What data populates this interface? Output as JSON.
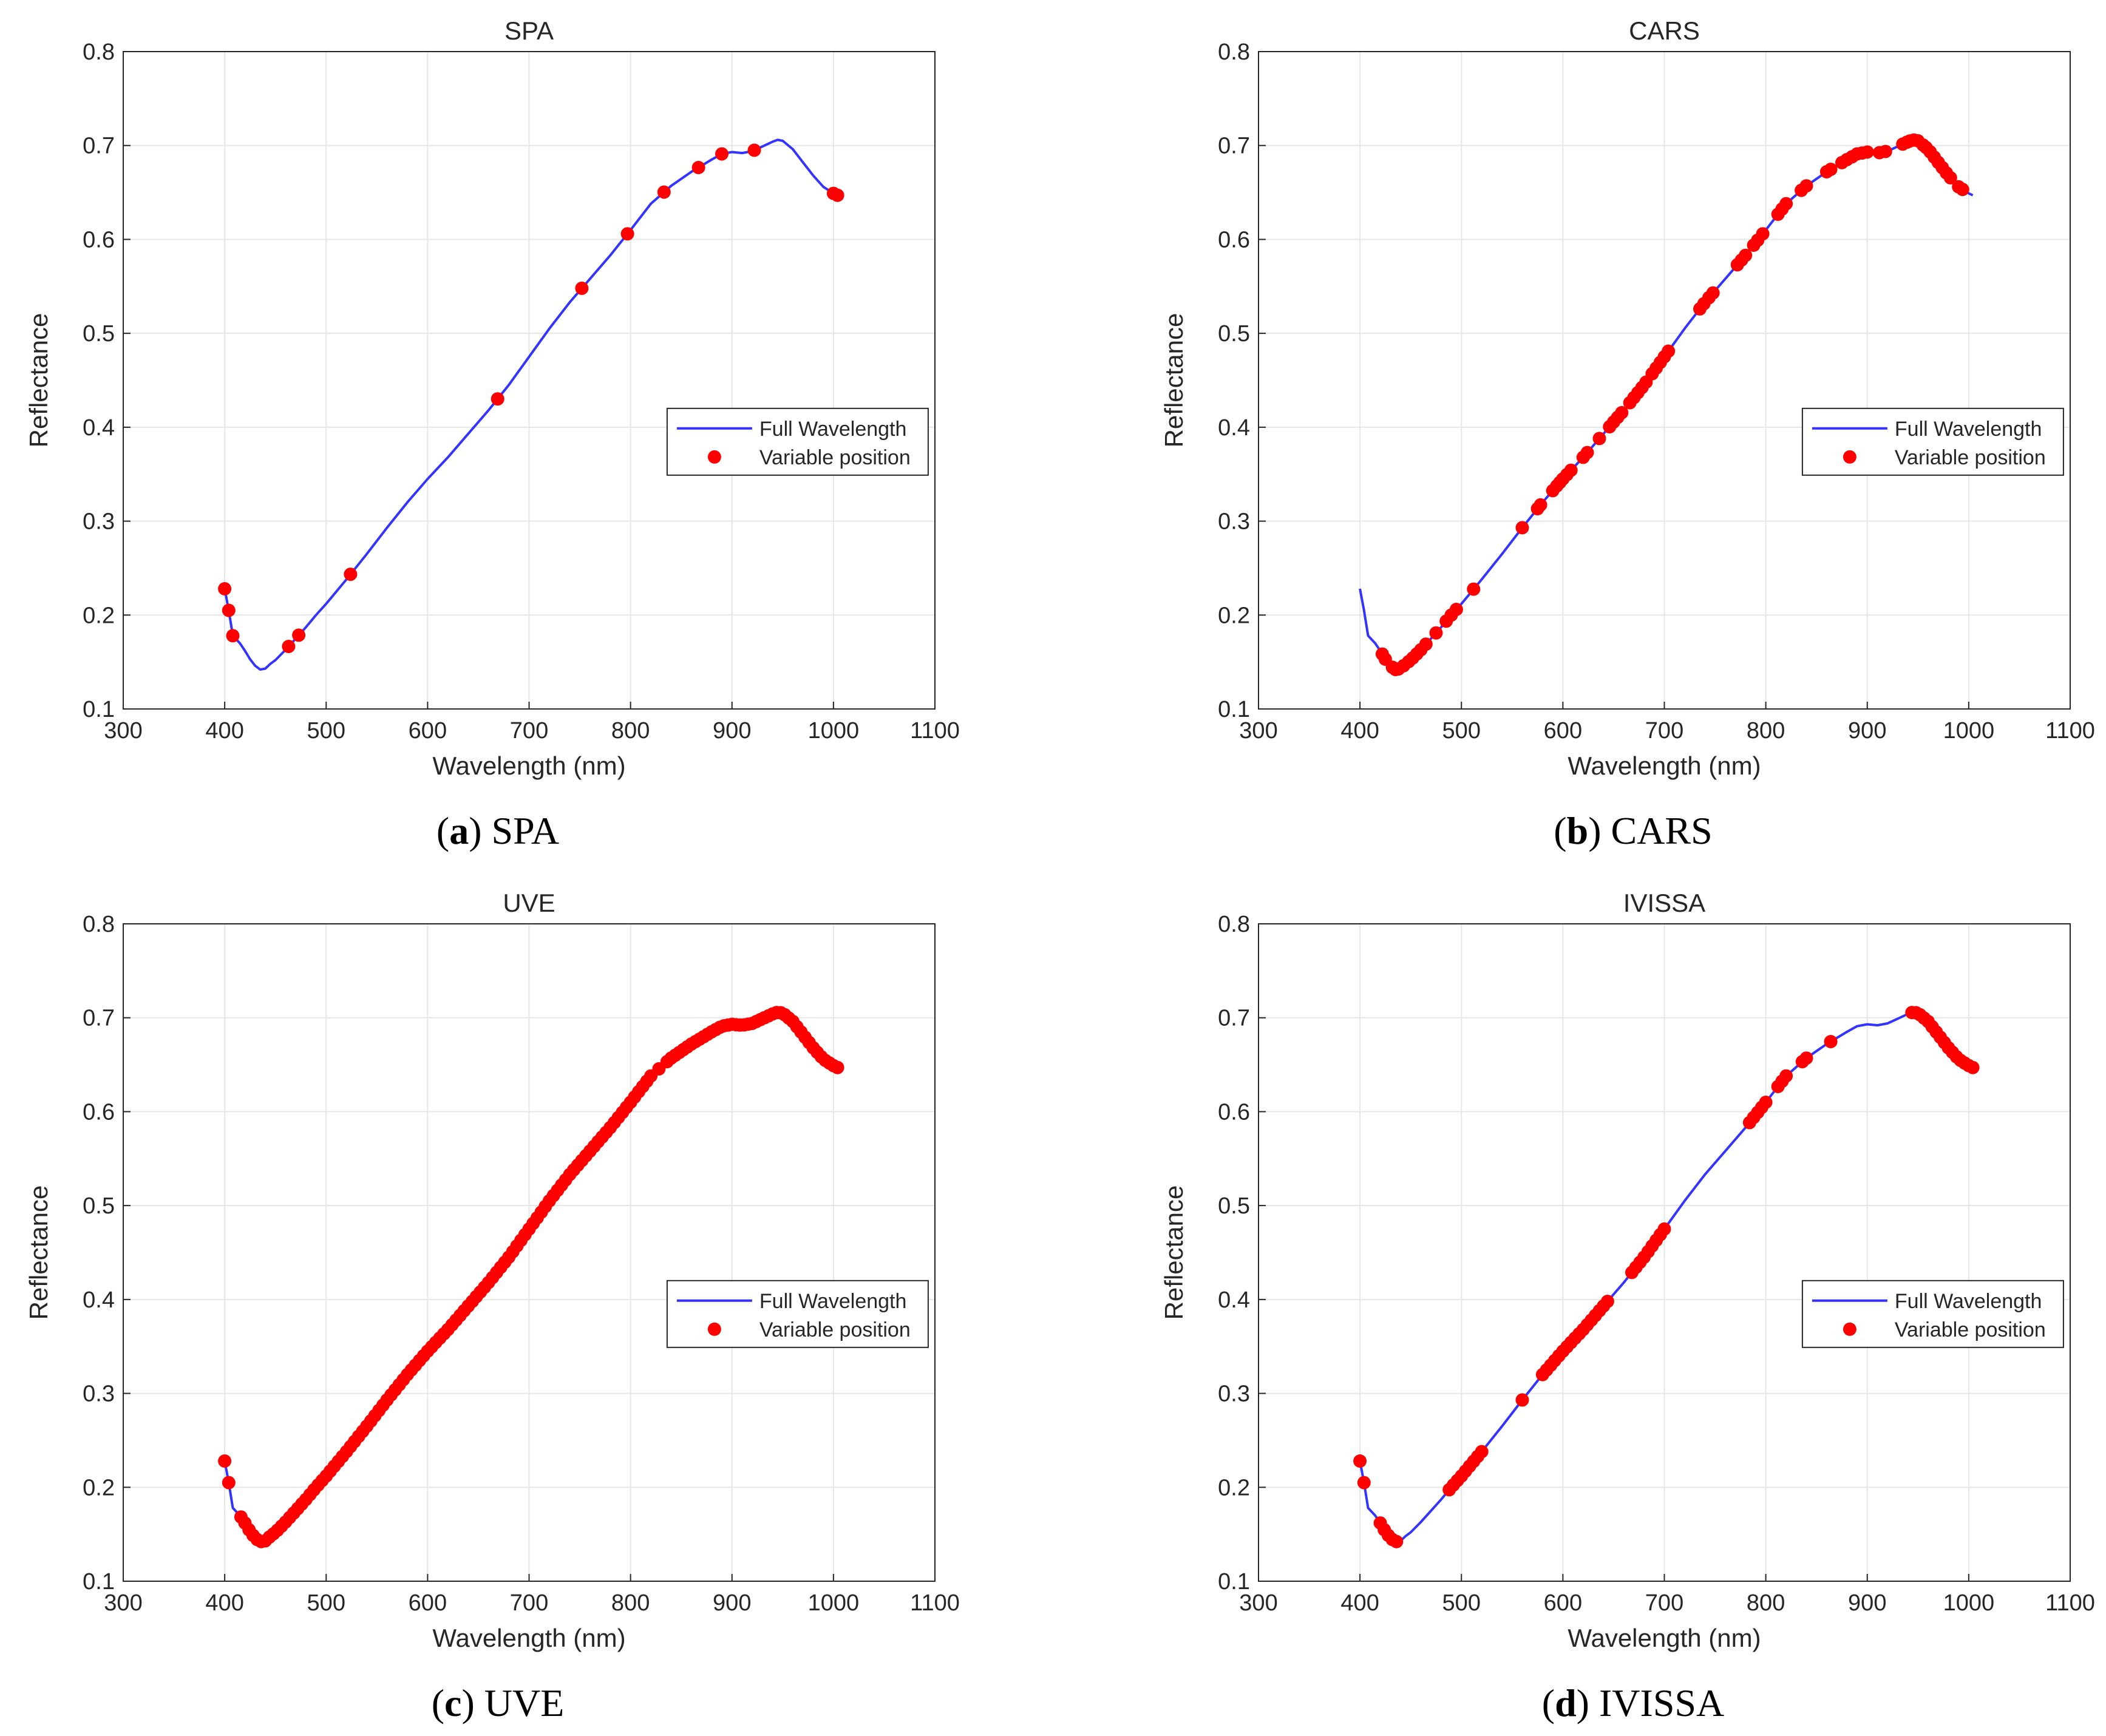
{
  "figure": {
    "panels": [
      {
        "id": "a",
        "caption_letter": "a",
        "caption_text": " SPA"
      },
      {
        "id": "b",
        "caption_letter": "b",
        "caption_text": " CARS"
      },
      {
        "id": "c",
        "caption_letter": "c",
        "caption_text": " UVE"
      },
      {
        "id": "d",
        "caption_letter": "d",
        "caption_text": " IVISSA"
      }
    ]
  },
  "colors": {
    "line": "#3333ff",
    "marker": "#ff0000",
    "grid": "#e6e6e6",
    "axis": "#262626"
  },
  "chart_data": [
    {
      "type": "line",
      "title": "SPA",
      "xlabel": "Wavelength (nm)",
      "ylabel": "Reflectance",
      "xlim": [
        300,
        1100
      ],
      "ylim": [
        0.1,
        0.8
      ],
      "xticks": [
        300,
        400,
        500,
        600,
        700,
        800,
        900,
        1000,
        1100
      ],
      "yticks": [
        0.1,
        0.2,
        0.3,
        0.4,
        0.5,
        0.6,
        0.7,
        0.8
      ],
      "grid": true,
      "legend": {
        "position": "center-right",
        "entries": [
          "Full Wavelength",
          "Variable position"
        ]
      },
      "series": [
        {
          "name": "Full Wavelength",
          "style": "line"
        },
        {
          "name": "Variable position",
          "style": "markers"
        }
      ],
      "x": [
        400,
        404,
        408,
        415,
        420,
        425,
        430,
        435,
        440,
        445,
        450,
        460,
        470,
        480,
        490,
        500,
        520,
        540,
        560,
        580,
        600,
        620,
        640,
        660,
        680,
        700,
        720,
        740,
        760,
        780,
        800,
        820,
        840,
        860,
        880,
        890,
        900,
        910,
        920,
        930,
        940,
        945,
        950,
        960,
        970,
        980,
        990,
        1000,
        1004
      ],
      "reflectance": [
        0.228,
        0.205,
        0.178,
        0.17,
        0.162,
        0.153,
        0.146,
        0.142,
        0.143,
        0.148,
        0.152,
        0.163,
        0.175,
        0.187,
        0.2,
        0.212,
        0.238,
        0.265,
        0.293,
        0.32,
        0.345,
        0.368,
        0.393,
        0.418,
        0.445,
        0.475,
        0.505,
        0.533,
        0.558,
        0.583,
        0.61,
        0.638,
        0.657,
        0.672,
        0.685,
        0.691,
        0.693,
        0.692,
        0.694,
        0.699,
        0.704,
        0.706,
        0.705,
        0.696,
        0.682,
        0.668,
        0.656,
        0.649,
        0.647
      ],
      "selected_x": [
        400,
        404,
        408,
        463,
        473,
        524,
        669,
        752,
        797,
        833,
        867,
        890,
        922,
        1000,
        1004
      ]
    },
    {
      "type": "line",
      "title": "CARS",
      "xlabel": "Wavelength (nm)",
      "ylabel": "Reflectance",
      "xlim": [
        300,
        1100
      ],
      "ylim": [
        0.1,
        0.8
      ],
      "xticks": [
        300,
        400,
        500,
        600,
        700,
        800,
        900,
        1000,
        1100
      ],
      "yticks": [
        0.1,
        0.2,
        0.3,
        0.4,
        0.5,
        0.6,
        0.7,
        0.8
      ],
      "grid": true,
      "legend": {
        "position": "center-right",
        "entries": [
          "Full Wavelength",
          "Variable position"
        ]
      },
      "series": [
        {
          "name": "Full Wavelength",
          "style": "line"
        },
        {
          "name": "Variable position",
          "style": "markers"
        }
      ],
      "x": [
        400,
        404,
        408,
        415,
        420,
        425,
        430,
        435,
        440,
        445,
        450,
        460,
        470,
        480,
        490,
        500,
        520,
        540,
        560,
        580,
        600,
        620,
        640,
        660,
        680,
        700,
        720,
        740,
        760,
        780,
        800,
        820,
        840,
        860,
        880,
        890,
        900,
        910,
        920,
        930,
        940,
        945,
        950,
        960,
        970,
        980,
        990,
        1000,
        1004
      ],
      "reflectance": [
        0.228,
        0.205,
        0.178,
        0.17,
        0.162,
        0.153,
        0.146,
        0.142,
        0.143,
        0.148,
        0.152,
        0.163,
        0.175,
        0.187,
        0.2,
        0.212,
        0.238,
        0.265,
        0.293,
        0.32,
        0.345,
        0.368,
        0.393,
        0.418,
        0.445,
        0.475,
        0.505,
        0.533,
        0.558,
        0.583,
        0.61,
        0.638,
        0.657,
        0.672,
        0.685,
        0.691,
        0.693,
        0.692,
        0.694,
        0.699,
        0.704,
        0.706,
        0.705,
        0.696,
        0.682,
        0.668,
        0.656,
        0.649,
        0.647
      ],
      "selected_x": [
        422,
        425,
        432,
        435,
        438,
        443,
        448,
        452,
        456,
        460,
        465,
        475,
        485,
        490,
        495,
        512,
        560,
        575,
        578,
        590,
        594,
        597,
        600,
        604,
        608,
        620,
        624,
        636,
        646,
        650,
        654,
        658,
        666,
        670,
        674,
        678,
        682,
        688,
        692,
        696,
        700,
        704,
        735,
        739,
        744,
        748,
        772,
        776,
        780,
        788,
        792,
        797,
        812,
        816,
        820,
        835,
        840,
        860,
        864,
        875,
        880,
        885,
        890,
        895,
        900,
        912,
        918,
        935,
        939,
        942,
        946,
        950,
        955,
        958,
        962,
        966,
        970,
        974,
        978,
        982,
        990,
        994
      ]
    },
    {
      "type": "line",
      "title": "UVE",
      "xlabel": "Wavelength (nm)",
      "ylabel": "Reflectance",
      "xlim": [
        300,
        1100
      ],
      "ylim": [
        0.1,
        0.8
      ],
      "xticks": [
        300,
        400,
        500,
        600,
        700,
        800,
        900,
        1000,
        1100
      ],
      "yticks": [
        0.1,
        0.2,
        0.3,
        0.4,
        0.5,
        0.6,
        0.7,
        0.8
      ],
      "grid": true,
      "legend": {
        "position": "center-right",
        "entries": [
          "Full Wavelength",
          "Variable position"
        ]
      },
      "series": [
        {
          "name": "Full Wavelength",
          "style": "line"
        },
        {
          "name": "Variable position",
          "style": "markers"
        }
      ],
      "x": [
        400,
        404,
        408,
        415,
        420,
        425,
        430,
        435,
        440,
        445,
        450,
        460,
        470,
        480,
        490,
        500,
        520,
        540,
        560,
        580,
        600,
        620,
        640,
        660,
        680,
        700,
        720,
        740,
        760,
        780,
        800,
        820,
        840,
        860,
        880,
        890,
        900,
        910,
        920,
        930,
        940,
        945,
        950,
        960,
        970,
        980,
        990,
        1000,
        1004
      ],
      "reflectance": [
        0.228,
        0.205,
        0.178,
        0.17,
        0.162,
        0.153,
        0.146,
        0.142,
        0.143,
        0.148,
        0.152,
        0.163,
        0.175,
        0.187,
        0.2,
        0.212,
        0.238,
        0.265,
        0.293,
        0.32,
        0.345,
        0.368,
        0.393,
        0.418,
        0.445,
        0.475,
        0.505,
        0.533,
        0.558,
        0.583,
        0.61,
        0.638,
        0.657,
        0.672,
        0.685,
        0.691,
        0.693,
        0.692,
        0.694,
        0.699,
        0.704,
        0.706,
        0.705,
        0.696,
        0.682,
        0.668,
        0.656,
        0.649,
        0.647
      ],
      "selected_x": [
        400,
        404,
        416,
        420,
        424,
        428,
        432,
        436,
        440,
        444,
        448,
        452,
        456,
        460,
        464,
        468,
        472,
        476,
        480,
        484,
        488,
        492,
        496,
        500,
        504,
        508,
        512,
        516,
        520,
        524,
        528,
        532,
        536,
        540,
        544,
        548,
        552,
        556,
        560,
        564,
        568,
        572,
        576,
        580,
        584,
        588,
        592,
        596,
        600,
        604,
        608,
        612,
        616,
        620,
        624,
        628,
        632,
        636,
        640,
        644,
        648,
        652,
        656,
        660,
        664,
        668,
        672,
        676,
        680,
        684,
        688,
        692,
        696,
        700,
        704,
        708,
        712,
        716,
        720,
        724,
        728,
        732,
        736,
        740,
        744,
        748,
        752,
        756,
        760,
        764,
        768,
        772,
        776,
        780,
        784,
        788,
        792,
        796,
        800,
        804,
        808,
        812,
        816,
        820,
        828,
        836,
        840,
        844,
        848,
        852,
        856,
        860,
        864,
        868,
        872,
        876,
        880,
        884,
        888,
        892,
        896,
        900,
        904,
        908,
        912,
        916,
        920,
        924,
        928,
        932,
        936,
        940,
        944,
        948,
        952,
        956,
        960,
        964,
        968,
        972,
        976,
        980,
        984,
        988,
        992,
        996,
        1000,
        1004
      ]
    },
    {
      "type": "line",
      "title": "IVISSA",
      "xlabel": "Wavelength (nm)",
      "ylabel": "Reflectance",
      "xlim": [
        300,
        1100
      ],
      "ylim": [
        0.1,
        0.8
      ],
      "xticks": [
        300,
        400,
        500,
        600,
        700,
        800,
        900,
        1000,
        1100
      ],
      "yticks": [
        0.1,
        0.2,
        0.3,
        0.4,
        0.5,
        0.6,
        0.7,
        0.8
      ],
      "grid": true,
      "legend": {
        "position": "center-right",
        "entries": [
          "Full Wavelength",
          "Variable position"
        ]
      },
      "series": [
        {
          "name": "Full Wavelength",
          "style": "line"
        },
        {
          "name": "Variable position",
          "style": "markers"
        }
      ],
      "x": [
        400,
        404,
        408,
        415,
        420,
        425,
        430,
        435,
        440,
        445,
        450,
        460,
        470,
        480,
        490,
        500,
        520,
        540,
        560,
        580,
        600,
        620,
        640,
        660,
        680,
        700,
        720,
        740,
        760,
        780,
        800,
        820,
        840,
        860,
        880,
        890,
        900,
        910,
        920,
        930,
        940,
        945,
        950,
        960,
        970,
        980,
        990,
        1000,
        1004
      ],
      "reflectance": [
        0.228,
        0.205,
        0.178,
        0.17,
        0.162,
        0.153,
        0.146,
        0.142,
        0.143,
        0.148,
        0.152,
        0.163,
        0.175,
        0.187,
        0.2,
        0.212,
        0.238,
        0.265,
        0.293,
        0.32,
        0.345,
        0.368,
        0.393,
        0.418,
        0.445,
        0.475,
        0.505,
        0.533,
        0.558,
        0.583,
        0.61,
        0.638,
        0.657,
        0.672,
        0.685,
        0.691,
        0.693,
        0.692,
        0.694,
        0.699,
        0.704,
        0.706,
        0.705,
        0.696,
        0.682,
        0.668,
        0.656,
        0.649,
        0.647
      ],
      "selected_x": [
        400,
        404,
        420,
        424,
        428,
        432,
        436,
        488,
        492,
        496,
        500,
        504,
        508,
        512,
        516,
        520,
        560,
        580,
        584,
        588,
        592,
        596,
        600,
        604,
        608,
        612,
        616,
        620,
        624,
        628,
        632,
        636,
        640,
        644,
        668,
        672,
        676,
        680,
        684,
        688,
        692,
        696,
        700,
        784,
        788,
        792,
        796,
        800,
        812,
        816,
        820,
        836,
        840,
        864,
        944,
        948,
        952,
        956,
        960,
        964,
        968,
        972,
        976,
        980,
        984,
        988,
        992,
        996,
        1000,
        1004
      ]
    }
  ]
}
